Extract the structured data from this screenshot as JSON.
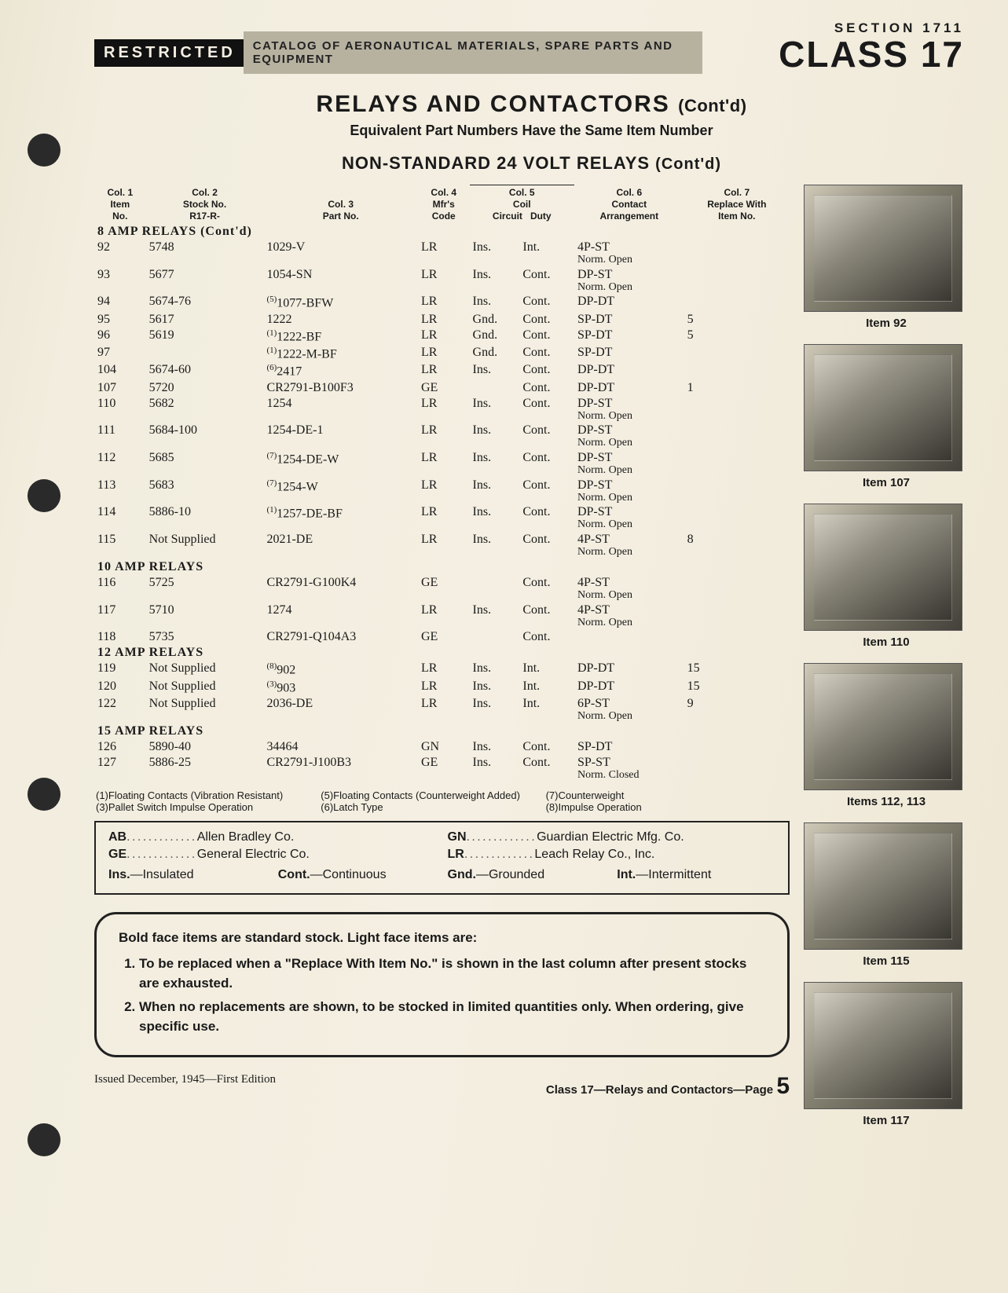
{
  "header": {
    "restricted": "RESTRICTED",
    "catalog_strip": "CATALOG OF AERONAUTICAL MATERIALS, SPARE PARTS AND EQUIPMENT",
    "section_line": "SECTION 1711",
    "class_line": "CLASS 17"
  },
  "titles": {
    "main": "RELAYS AND CONTACTORS",
    "main_cont": "(Cont'd)",
    "sub1": "Equivalent Part Numbers Have the Same Item Number",
    "sub2": "NON-STANDARD 24 VOLT RELAYS",
    "sub2_cont": "(Cont'd)"
  },
  "columns": {
    "c1a": "Col. 1",
    "c1b": "Item",
    "c1c": "No.",
    "c2a": "Col. 2",
    "c2b": "Stock No.",
    "c2c": "R17-R-",
    "c3a": "Col. 3",
    "c3b": "Part No.",
    "c4a": "Col. 4",
    "c4b": "Mfr's",
    "c4c": "Code",
    "c5top": "Col. 5",
    "c5mid": "Coil",
    "c5a": "Circuit",
    "c5b": "Duty",
    "c6a": "Col. 6",
    "c6b": "Contact",
    "c6c": "Arrangement",
    "c7a": "Col. 7",
    "c7b": "Replace With",
    "c7c": "Item No."
  },
  "sections": {
    "s8": "8 AMP RELAYS (Cont'd)",
    "s10": "10 AMP RELAYS",
    "s12": "12 AMP RELAYS",
    "s15": "15 AMP RELAYS"
  },
  "rows8": [
    {
      "item": "92",
      "stock": "5748",
      "part": "1029-V",
      "sup": "",
      "mfr": "LR",
      "circ": "Ins.",
      "duty": "Int.",
      "contact": "4P-ST",
      "contact2": "Norm. Open",
      "rep": ""
    },
    {
      "item": "93",
      "stock": "5677",
      "part": "1054-SN",
      "sup": "",
      "mfr": "LR",
      "circ": "Ins.",
      "duty": "Cont.",
      "contact": "DP-ST",
      "contact2": "Norm. Open",
      "rep": ""
    },
    {
      "item": "94",
      "stock": "5674-76",
      "part": "1077-BFW",
      "sup": "(5)",
      "mfr": "LR",
      "circ": "Ins.",
      "duty": "Cont.",
      "contact": "DP-DT",
      "contact2": "",
      "rep": ""
    },
    {
      "item": "95",
      "stock": "5617",
      "part": "1222",
      "sup": "",
      "mfr": "LR",
      "circ": "Gnd.",
      "duty": "Cont.",
      "contact": "SP-DT",
      "contact2": "",
      "rep": "5"
    },
    {
      "item": "96",
      "stock": "5619",
      "part": "1222-BF",
      "sup": "(1)",
      "mfr": "LR",
      "circ": "Gnd.",
      "duty": "Cont.",
      "contact": "SP-DT",
      "contact2": "",
      "rep": "5"
    },
    {
      "item": "97",
      "stock": "",
      "part": "1222-M-BF",
      "sup": "(1)",
      "mfr": "LR",
      "circ": "Gnd.",
      "duty": "Cont.",
      "contact": "SP-DT",
      "contact2": "",
      "rep": ""
    },
    {
      "item": "104",
      "stock": "5674-60",
      "part": "2417",
      "sup": "(6)",
      "mfr": "LR",
      "circ": "Ins.",
      "duty": "Cont.",
      "contact": "DP-DT",
      "contact2": "",
      "rep": ""
    },
    {
      "item": "107",
      "stock": "5720",
      "part": "CR2791-B100F3",
      "sup": "",
      "mfr": "GE",
      "circ": "",
      "duty": "Cont.",
      "contact": "DP-DT",
      "contact2": "",
      "rep": "1"
    },
    {
      "item": "110",
      "stock": "5682",
      "part": "1254",
      "sup": "",
      "mfr": "LR",
      "circ": "Ins.",
      "duty": "Cont.",
      "contact": "DP-ST",
      "contact2": "Norm. Open",
      "rep": ""
    },
    {
      "item": "111",
      "stock": "5684-100",
      "part": "1254-DE-1",
      "sup": "",
      "mfr": "LR",
      "circ": "Ins.",
      "duty": "Cont.",
      "contact": "DP-ST",
      "contact2": "Norm. Open",
      "rep": ""
    },
    {
      "item": "112",
      "stock": "5685",
      "part": "1254-DE-W",
      "sup": "(7)",
      "mfr": "LR",
      "circ": "Ins.",
      "duty": "Cont.",
      "contact": "DP-ST",
      "contact2": "Norm. Open",
      "rep": ""
    },
    {
      "item": "113",
      "stock": "5683",
      "part": "1254-W",
      "sup": "(7)",
      "mfr": "LR",
      "circ": "Ins.",
      "duty": "Cont.",
      "contact": "DP-ST",
      "contact2": "Norm. Open",
      "rep": ""
    },
    {
      "item": "114",
      "stock": "5886-10",
      "part": "1257-DE-BF",
      "sup": "(1)",
      "mfr": "LR",
      "circ": "Ins.",
      "duty": "Cont.",
      "contact": "DP-ST",
      "contact2": "Norm. Open",
      "rep": ""
    },
    {
      "item": "115",
      "stock": "Not Supplied",
      "part": "2021-DE",
      "sup": "",
      "mfr": "LR",
      "circ": "Ins.",
      "duty": "Cont.",
      "contact": "4P-ST",
      "contact2": "Norm. Open",
      "rep": "8"
    }
  ],
  "rows10": [
    {
      "item": "116",
      "stock": "5725",
      "part": "CR2791-G100K4",
      "sup": "",
      "mfr": "GE",
      "circ": "",
      "duty": "Cont.",
      "contact": "4P-ST",
      "contact2": "Norm. Open",
      "rep": ""
    },
    {
      "item": "117",
      "stock": "5710",
      "part": "1274",
      "sup": "",
      "mfr": "LR",
      "circ": "Ins.",
      "duty": "Cont.",
      "contact": "4P-ST",
      "contact2": "Norm. Open",
      "rep": ""
    },
    {
      "item": "118",
      "stock": "5735",
      "part": "CR2791-Q104A3",
      "sup": "",
      "mfr": "GE",
      "circ": "",
      "duty": "Cont.",
      "contact": "",
      "contact2": "",
      "rep": ""
    }
  ],
  "rows12": [
    {
      "item": "119",
      "stock": "Not Supplied",
      "part": "902",
      "sup": "(8)",
      "mfr": "LR",
      "circ": "Ins.",
      "duty": "Int.",
      "contact": "DP-DT",
      "contact2": "",
      "rep": "15"
    },
    {
      "item": "120",
      "stock": "Not Supplied",
      "part": "903",
      "sup": "(3)",
      "mfr": "LR",
      "circ": "Ins.",
      "duty": "Int.",
      "contact": "DP-DT",
      "contact2": "",
      "rep": "15"
    },
    {
      "item": "122",
      "stock": "Not Supplied",
      "part": "2036-DE",
      "sup": "",
      "mfr": "LR",
      "circ": "Ins.",
      "duty": "Int.",
      "contact": "6P-ST",
      "contact2": "Norm. Open",
      "rep": "9"
    }
  ],
  "rows15": [
    {
      "item": "126",
      "stock": "5890-40",
      "part": "34464",
      "sup": "",
      "mfr": "GN",
      "circ": "Ins.",
      "duty": "Cont.",
      "contact": "SP-DT",
      "contact2": "",
      "rep": ""
    },
    {
      "item": "127",
      "stock": "5886-25",
      "part": "CR2791-J100B3",
      "sup": "",
      "mfr": "GE",
      "circ": "Ins.",
      "duty": "Cont.",
      "contact": "SP-ST",
      "contact2": "Norm. Closed",
      "rep": ""
    }
  ],
  "footnotes": {
    "f1": "(1)Floating Contacts (Vibration Resistant)",
    "f3": "(3)Pallet Switch Impulse Operation",
    "f5": "(5)Floating Contacts (Counterweight Added)",
    "f6": "(6)Latch Type",
    "f7": "(7)Counterweight",
    "f8": "(8)Impulse Operation"
  },
  "legend": {
    "ab_k": "AB",
    "ab_v": "Allen Bradley Co.",
    "ge_k": "GE",
    "ge_v": "General Electric Co.",
    "gn_k": "GN",
    "gn_v": "Guardian Electric Mfg. Co.",
    "lr_k": "LR",
    "lr_v": "Leach Relay Co., Inc.",
    "ins_k": "Ins.",
    "ins_v": "—Insulated",
    "cont_k": "Cont.",
    "cont_v": "—Continuous",
    "gnd_k": "Gnd.",
    "gnd_v": "—Grounded",
    "int_k": "Int.",
    "int_v": "—Intermittent"
  },
  "notes": {
    "lead": "Bold face items are standard stock. Light face items are:",
    "li1": "To be replaced when a \"Replace With Item No.\" is shown in the last column after present stocks are exhausted.",
    "li2": "When no replacements are shown, to be stocked in limited quantities only. When ordering, give specific use."
  },
  "photos": {
    "p1": "Item 92",
    "p2": "Item 107",
    "p3": "Item 110",
    "p4": "Items 112, 113",
    "p5": "Item 115",
    "p6": "Item 117"
  },
  "footer": {
    "left": "Issued December, 1945—First Edition",
    "right": "Class 17—Relays and Contactors—Page",
    "page": "5"
  },
  "style": {
    "page_bg": "#f2edde",
    "ink": "#1a1a1a",
    "strip_bg": "#b7b1a0",
    "restricted_bg": "#111111"
  }
}
